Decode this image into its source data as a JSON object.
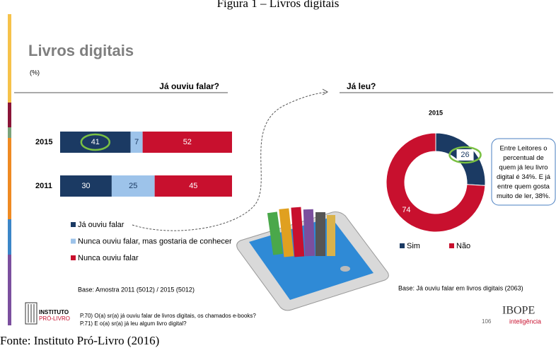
{
  "caption": "Figura 1 – Livros digitais",
  "title": "Livros digitais",
  "unit": "(%)",
  "chart_data": [
    {
      "type": "bar",
      "orientation": "horizontal",
      "stacked": true,
      "title": "Já ouviu falar?",
      "categories": [
        "2015",
        "2011"
      ],
      "series": [
        {
          "name": "Já ouviu falar",
          "color": "#1b3a63",
          "values": [
            41,
            30
          ]
        },
        {
          "name": "Nunca ouviu falar, mas gostaria de conhecer",
          "color": "#9dc3ea",
          "values": [
            7,
            25
          ]
        },
        {
          "name": "Nunca ouviu falar",
          "color": "#c8102e",
          "values": [
            52,
            45
          ]
        }
      ]
    },
    {
      "type": "pie",
      "donut": true,
      "title": "Já leu?",
      "subtitle": "2015",
      "categories": [
        "Sim",
        "Não"
      ],
      "values": [
        26,
        74
      ],
      "colors": [
        "#1b3a63",
        "#c8102e"
      ]
    }
  ],
  "callout": [
    "Entre Leitores o",
    "percentual de",
    "quem já leu livro",
    "digital é 34%. E já",
    "entre quem gosta",
    "muito de ler, 38%."
  ],
  "base_left": "Base: Amostra 2011 (5012) / 2015 (5012)",
  "base_right": "Base: Já ouviu falar em livros digitais (2063)",
  "footnotes": [
    "P.70) O(a) sr(a) já ouviu falar de livros digitais, os chamados e-books?",
    "P.71) E o(a) sr(a) já leu algum livro digital?"
  ],
  "logo_left": [
    "INSTITUTO",
    "PRÓ-LIVRO"
  ],
  "logo_right": [
    "IBOPE",
    "inteligência"
  ],
  "page_number": "106",
  "source": "Fonte: Instituto Pró-Livro (2016)"
}
